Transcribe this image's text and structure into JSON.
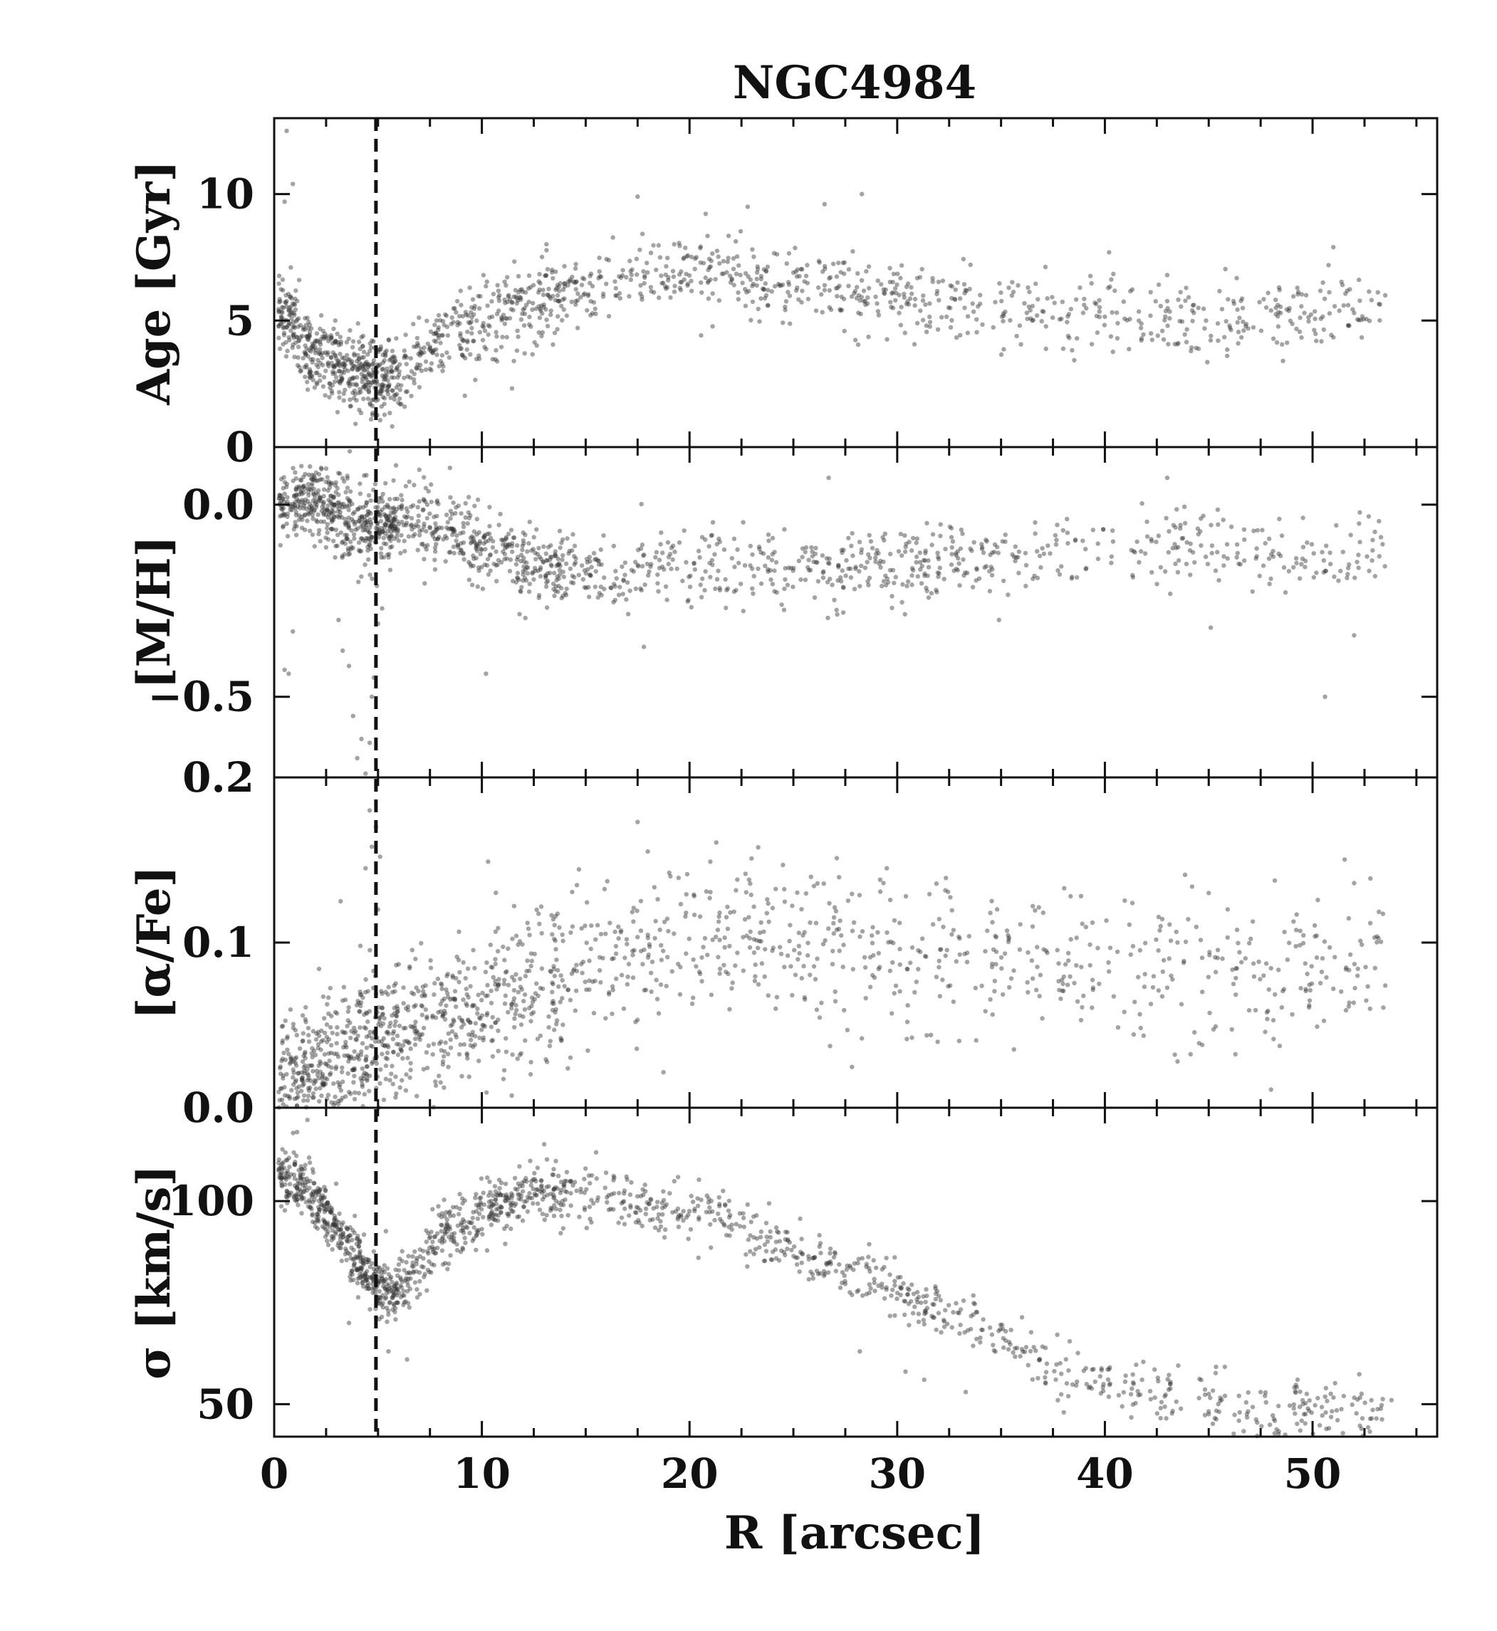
{
  "figure": {
    "title": "NGC4984",
    "xlabel": "R [arcsec]",
    "colors": {
      "points": "#333333",
      "axes": "#111111",
      "marker_line": "#111111",
      "background": "#ffffff"
    }
  },
  "chart_data": {
    "type": "scatter",
    "shared_x": {
      "label": "R [arcsec]",
      "lim": [
        0,
        56
      ],
      "ticks": [
        0,
        10,
        20,
        30,
        40,
        50
      ],
      "tick_labels": [
        "0",
        "10",
        "20",
        "30",
        "40",
        "50"
      ]
    },
    "vertical_dashed_line": {
      "x": 4.9
    },
    "panels": [
      {
        "ylabel": "Age [Gyr]",
        "ylim": [
          0,
          13
        ],
        "yticks": [
          0,
          5,
          10
        ],
        "ytick_labels": [
          "0",
          "5",
          "10"
        ],
        "trend": [
          [
            0.2,
            5.6
          ],
          [
            1,
            4.5
          ],
          [
            2,
            3.6
          ],
          [
            3,
            3.3
          ],
          [
            4,
            3.1
          ],
          [
            5,
            2.6
          ],
          [
            6,
            2.8
          ],
          [
            7,
            3.4
          ],
          [
            8,
            4.1
          ],
          [
            10,
            4.9
          ],
          [
            12,
            5.5
          ],
          [
            14,
            6.1
          ],
          [
            16,
            6.5
          ],
          [
            18,
            6.7
          ],
          [
            20,
            6.8
          ],
          [
            22,
            6.7
          ],
          [
            24,
            6.5
          ],
          [
            26,
            6.4
          ],
          [
            28,
            6.2
          ],
          [
            30,
            6.0
          ],
          [
            32,
            5.8
          ],
          [
            35,
            5.4
          ],
          [
            38,
            5.1
          ],
          [
            42,
            5.0
          ],
          [
            46,
            5.0
          ],
          [
            50,
            5.3
          ],
          [
            54,
            5.6
          ]
        ],
        "spread": 0.75,
        "samples": [
          [
            0.6,
            12.5
          ],
          [
            0.9,
            10.4
          ],
          [
            0.5,
            9.7
          ],
          [
            0.8,
            7.1
          ],
          [
            1.2,
            6.6
          ],
          [
            26.5,
            9.6
          ],
          [
            28.3,
            10.0
          ],
          [
            17.5,
            9.9
          ],
          [
            22.8,
            9.5
          ],
          [
            51,
            7.9
          ],
          [
            40.2,
            7.7
          ],
          [
            43,
            6.8
          ],
          [
            48,
            5.4
          ],
          [
            50.5,
            6.5
          ],
          [
            52,
            5.3
          ],
          [
            53.5,
            6.0
          ],
          [
            44.5,
            5.5
          ],
          [
            46,
            4.8
          ],
          [
            38.8,
            6.3
          ],
          [
            36.5,
            5.0
          ]
        ]
      },
      {
        "ylabel": "[M/H]",
        "ylim": [
          -0.71,
          0.15
        ],
        "yticks": [
          -0.5,
          0.0
        ],
        "ytick_labels": [
          "−0.5",
          "0.0"
        ],
        "trend": [
          [
            0.2,
            0.0
          ],
          [
            1,
            0.02
          ],
          [
            2,
            0.01
          ],
          [
            3,
            -0.02
          ],
          [
            4,
            -0.05
          ],
          [
            5,
            -0.06
          ],
          [
            6,
            -0.03
          ],
          [
            8,
            -0.06
          ],
          [
            10,
            -0.1
          ],
          [
            12,
            -0.14
          ],
          [
            14,
            -0.17
          ],
          [
            17,
            -0.18
          ],
          [
            20,
            -0.17
          ],
          [
            25,
            -0.17
          ],
          [
            30,
            -0.16
          ],
          [
            35,
            -0.13
          ],
          [
            40,
            -0.12
          ],
          [
            45,
            -0.12
          ],
          [
            50,
            -0.14
          ],
          [
            54,
            -0.11
          ]
        ],
        "spread": 0.05,
        "samples": [
          [
            0.5,
            -0.43
          ],
          [
            0.7,
            -0.44
          ],
          [
            0.9,
            -0.33
          ],
          [
            3.1,
            -0.3
          ],
          [
            3.3,
            -0.38
          ],
          [
            3.6,
            -0.42
          ],
          [
            3.8,
            -0.55
          ],
          [
            4.0,
            -0.66
          ],
          [
            4.2,
            -0.61
          ],
          [
            4.4,
            -0.7
          ],
          [
            4.6,
            -0.62
          ],
          [
            4.7,
            -0.5
          ],
          [
            4.8,
            -0.45
          ],
          [
            5.0,
            -0.31
          ],
          [
            5.2,
            -0.27
          ],
          [
            10.2,
            -0.44
          ],
          [
            50.6,
            -0.5
          ],
          [
            52,
            -0.34
          ],
          [
            45.1,
            -0.32
          ],
          [
            26.7,
            0.07
          ],
          [
            43,
            0.07
          ],
          [
            17.8,
            -0.37
          ],
          [
            34.9,
            -0.3
          ]
        ]
      },
      {
        "ylabel": "[α/Fe]",
        "ylim": [
          0.0,
          0.2
        ],
        "yticks": [
          0.0,
          0.1,
          0.2
        ],
        "ytick_labels": [
          "0.0",
          "0.1",
          "0.2"
        ],
        "trend": [
          [
            0.2,
            0.01
          ],
          [
            2,
            0.02
          ],
          [
            4,
            0.035
          ],
          [
            6,
            0.045
          ],
          [
            8,
            0.05
          ],
          [
            10,
            0.06
          ],
          [
            12,
            0.07
          ],
          [
            15,
            0.085
          ],
          [
            18,
            0.095
          ],
          [
            22,
            0.1
          ],
          [
            26,
            0.1
          ],
          [
            30,
            0.095
          ],
          [
            35,
            0.09
          ],
          [
            40,
            0.085
          ],
          [
            45,
            0.085
          ],
          [
            50,
            0.09
          ],
          [
            54,
            0.09
          ]
        ],
        "spread": 0.022,
        "samples": [
          [
            4.6,
            0.18
          ],
          [
            4.9,
            0.17
          ],
          [
            4.7,
            0.158
          ],
          [
            5.1,
            0.152
          ],
          [
            4.4,
            0.145
          ],
          [
            3.2,
            0.125
          ],
          [
            17.5,
            0.173
          ],
          [
            10.3,
            0.149
          ],
          [
            21,
            0.149
          ],
          [
            24.5,
            0.147
          ],
          [
            29.5,
            0.145
          ],
          [
            52,
            0.136
          ],
          [
            43.5,
            0.028
          ],
          [
            48,
            0.011
          ],
          [
            28.3,
            0.042
          ],
          [
            5.0,
            0.12
          ],
          [
            45,
            0.13
          ],
          [
            51,
            0.072
          ],
          [
            53.5,
            0.074
          ]
        ]
      },
      {
        "ylabel": "σ [km/s]",
        "ylim": [
          42,
          123
        ],
        "yticks": [
          50,
          100
        ],
        "ytick_labels": [
          "50",
          "100"
        ],
        "trend": [
          [
            0.2,
            107
          ],
          [
            1,
            105
          ],
          [
            2,
            101
          ],
          [
            3,
            93
          ],
          [
            4,
            85
          ],
          [
            5,
            78
          ],
          [
            6,
            77
          ],
          [
            7,
            84
          ],
          [
            8,
            92
          ],
          [
            10,
            97
          ],
          [
            12,
            101
          ],
          [
            14,
            102
          ],
          [
            16,
            101
          ],
          [
            18,
            99
          ],
          [
            20,
            97
          ],
          [
            22,
            94
          ],
          [
            24,
            90
          ],
          [
            26,
            86
          ],
          [
            28,
            82
          ],
          [
            30,
            78
          ],
          [
            32,
            73
          ],
          [
            34,
            68
          ],
          [
            36,
            63
          ],
          [
            38,
            58
          ],
          [
            40,
            55
          ],
          [
            42,
            53
          ],
          [
            44,
            52
          ],
          [
            46,
            49
          ],
          [
            48,
            48
          ],
          [
            50,
            49
          ],
          [
            52,
            49
          ],
          [
            54,
            50
          ]
        ],
        "spread": 3.5,
        "samples": [
          [
            1.6,
            120
          ],
          [
            1.1,
            117
          ],
          [
            13,
            114
          ],
          [
            15.5,
            112
          ],
          [
            28.2,
            63
          ],
          [
            30.4,
            58
          ],
          [
            31.3,
            56
          ],
          [
            33.3,
            53
          ],
          [
            51.5,
            52
          ],
          [
            52.4,
            46.5
          ],
          [
            53.8,
            51
          ],
          [
            47.5,
            53
          ],
          [
            45,
            52.5
          ],
          [
            41,
            57
          ],
          [
            3.6,
            70
          ],
          [
            6.4,
            61
          ],
          [
            5.5,
            63
          ]
        ]
      }
    ]
  }
}
